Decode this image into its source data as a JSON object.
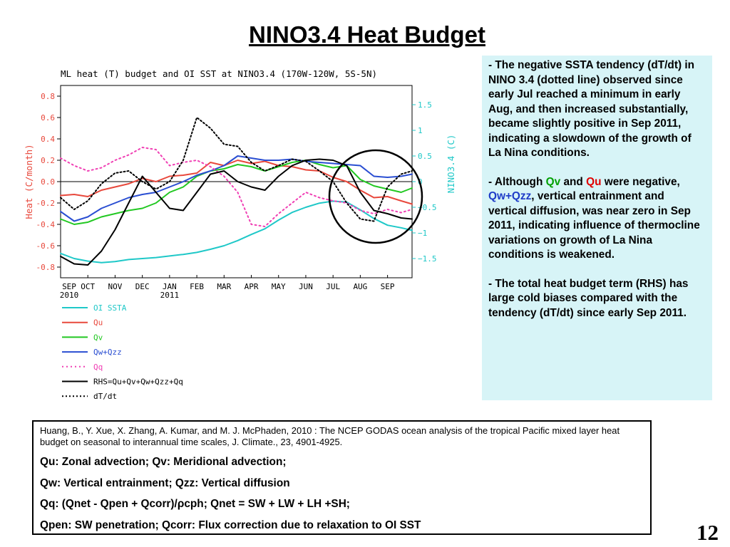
{
  "slide": {
    "title": "NINO3.4 Heat Budget",
    "page_number": "12"
  },
  "chart_data": {
    "type": "line",
    "title": "ML heat (T) budget and OI SST at NINO3.4 (170W-120W, 5S-5N)",
    "ylabel_left": "Heat (C/month)",
    "ylabel_right": "NINO3.4 (C)",
    "ylim_left": [
      -0.9,
      0.9
    ],
    "ylim_right": [
      -1.875,
      1.875
    ],
    "yticks_left": [
      "0.8",
      "0.6",
      "0.4",
      "0.2",
      "0.0",
      "-0.2",
      "-0.4",
      "-0.6",
      "-0.8"
    ],
    "yticks_right": [
      "1.5",
      "1",
      "0.5",
      "0",
      "-0.5",
      "-1",
      "-1.5"
    ],
    "xticks": [
      {
        "label": "SEP",
        "sub": "2010"
      },
      {
        "label": "OCT",
        "sub": ""
      },
      {
        "label": "NOV",
        "sub": ""
      },
      {
        "label": "DEC",
        "sub": ""
      },
      {
        "label": "JAN",
        "sub": "2011"
      },
      {
        "label": "FEB",
        "sub": ""
      },
      {
        "label": "MAR",
        "sub": ""
      },
      {
        "label": "APR",
        "sub": ""
      },
      {
        "label": "MAY",
        "sub": ""
      },
      {
        "label": "JUN",
        "sub": ""
      },
      {
        "label": "JUL",
        "sub": ""
      },
      {
        "label": "AUG",
        "sub": ""
      },
      {
        "label": "SEP",
        "sub": ""
      }
    ],
    "x_months_start": 0,
    "x_months_end": 12.9,
    "highlight_circle": true,
    "series": [
      {
        "name": "OI SSTA",
        "color": "#1fc8c8",
        "dash": "",
        "axis": "right",
        "points": [
          [
            0,
            -1.4
          ],
          [
            0.5,
            -1.5
          ],
          [
            1.0,
            -1.55
          ],
          [
            1.5,
            -1.58
          ],
          [
            2.0,
            -1.56
          ],
          [
            2.5,
            -1.52
          ],
          [
            3.0,
            -1.5
          ],
          [
            3.5,
            -1.48
          ],
          [
            4.0,
            -1.45
          ],
          [
            4.5,
            -1.42
          ],
          [
            5.0,
            -1.38
          ],
          [
            5.5,
            -1.32
          ],
          [
            6.0,
            -1.25
          ],
          [
            6.5,
            -1.15
          ],
          [
            7.0,
            -1.03
          ],
          [
            7.5,
            -0.92
          ],
          [
            8.0,
            -0.75
          ],
          [
            8.5,
            -0.6
          ],
          [
            9.0,
            -0.5
          ],
          [
            9.5,
            -0.42
          ],
          [
            10.0,
            -0.38
          ],
          [
            10.5,
            -0.4
          ],
          [
            11.0,
            -0.55
          ],
          [
            11.5,
            -0.72
          ],
          [
            12.0,
            -0.85
          ],
          [
            12.5,
            -0.9
          ],
          [
            12.9,
            -0.95
          ]
        ]
      },
      {
        "name": "Qu",
        "color": "#e8483c",
        "dash": "",
        "axis": "left",
        "points": [
          [
            0,
            -0.13
          ],
          [
            0.5,
            -0.12
          ],
          [
            1.0,
            -0.14
          ],
          [
            1.5,
            -0.08
          ],
          [
            2.0,
            -0.05
          ],
          [
            2.5,
            -0.02
          ],
          [
            3.0,
            0.03
          ],
          [
            3.5,
            0.0
          ],
          [
            4.0,
            0.05
          ],
          [
            4.5,
            0.06
          ],
          [
            5.0,
            0.08
          ],
          [
            5.5,
            0.18
          ],
          [
            6.0,
            0.15
          ],
          [
            6.5,
            0.2
          ],
          [
            7.0,
            0.17
          ],
          [
            7.5,
            0.19
          ],
          [
            8.0,
            0.15
          ],
          [
            8.5,
            0.14
          ],
          [
            9.0,
            0.11
          ],
          [
            9.5,
            0.1
          ],
          [
            10.0,
            0.04
          ],
          [
            10.5,
            0.0
          ],
          [
            11.0,
            -0.08
          ],
          [
            11.5,
            -0.15
          ],
          [
            12.0,
            -0.14
          ],
          [
            12.5,
            -0.18
          ],
          [
            12.9,
            -0.21
          ]
        ]
      },
      {
        "name": "Qv",
        "color": "#22c822",
        "dash": "",
        "axis": "left",
        "points": [
          [
            0,
            -0.35
          ],
          [
            0.5,
            -0.4
          ],
          [
            1.0,
            -0.38
          ],
          [
            1.5,
            -0.33
          ],
          [
            2.0,
            -0.3
          ],
          [
            2.5,
            -0.27
          ],
          [
            3.0,
            -0.25
          ],
          [
            3.5,
            -0.2
          ],
          [
            4.0,
            -0.1
          ],
          [
            4.5,
            -0.05
          ],
          [
            5.0,
            0.05
          ],
          [
            5.5,
            0.1
          ],
          [
            6.0,
            0.12
          ],
          [
            6.5,
            0.16
          ],
          [
            7.0,
            0.14
          ],
          [
            7.5,
            0.1
          ],
          [
            8.0,
            0.14
          ],
          [
            8.5,
            0.18
          ],
          [
            9.0,
            0.2
          ],
          [
            9.5,
            0.16
          ],
          [
            10.0,
            0.13
          ],
          [
            10.5,
            0.15
          ],
          [
            11.0,
            0.02
          ],
          [
            11.5,
            -0.04
          ],
          [
            12.0,
            -0.07
          ],
          [
            12.5,
            -0.1
          ],
          [
            12.9,
            -0.06
          ]
        ]
      },
      {
        "name": "Qw+Qzz",
        "color": "#2a4ed2",
        "dash": "",
        "axis": "left",
        "points": [
          [
            0,
            -0.28
          ],
          [
            0.5,
            -0.37
          ],
          [
            1.0,
            -0.33
          ],
          [
            1.5,
            -0.25
          ],
          [
            2.0,
            -0.2
          ],
          [
            2.5,
            -0.15
          ],
          [
            3.0,
            -0.12
          ],
          [
            3.5,
            -0.1
          ],
          [
            4.0,
            -0.05
          ],
          [
            4.5,
            0.0
          ],
          [
            5.0,
            0.06
          ],
          [
            5.5,
            0.1
          ],
          [
            6.0,
            0.15
          ],
          [
            6.5,
            0.24
          ],
          [
            7.0,
            0.22
          ],
          [
            7.5,
            0.2
          ],
          [
            8.0,
            0.2
          ],
          [
            8.5,
            0.21
          ],
          [
            9.0,
            0.19
          ],
          [
            9.5,
            0.18
          ],
          [
            10.0,
            0.17
          ],
          [
            10.5,
            0.16
          ],
          [
            11.0,
            0.15
          ],
          [
            11.5,
            0.05
          ],
          [
            12.0,
            0.04
          ],
          [
            12.5,
            0.05
          ],
          [
            12.9,
            0.07
          ]
        ]
      },
      {
        "name": "Qq",
        "color": "#f040b4",
        "dash": "2,4",
        "axis": "left",
        "points": [
          [
            0,
            0.22
          ],
          [
            0.5,
            0.15
          ],
          [
            1.0,
            0.1
          ],
          [
            1.5,
            0.13
          ],
          [
            2.0,
            0.2
          ],
          [
            2.5,
            0.25
          ],
          [
            3.0,
            0.32
          ],
          [
            3.5,
            0.3
          ],
          [
            4.0,
            0.15
          ],
          [
            4.5,
            0.18
          ],
          [
            5.0,
            0.2
          ],
          [
            5.5,
            0.14
          ],
          [
            6.0,
            0.05
          ],
          [
            6.5,
            -0.1
          ],
          [
            7.0,
            -0.4
          ],
          [
            7.5,
            -0.42
          ],
          [
            8.0,
            -0.3
          ],
          [
            8.5,
            -0.2
          ],
          [
            9.0,
            -0.1
          ],
          [
            9.5,
            -0.15
          ],
          [
            10.0,
            -0.18
          ],
          [
            10.5,
            -0.2
          ],
          [
            11.0,
            -0.27
          ],
          [
            11.5,
            -0.3
          ],
          [
            12.0,
            -0.26
          ],
          [
            12.5,
            -0.29
          ],
          [
            12.9,
            -0.26
          ]
        ]
      },
      {
        "name": "RHS=Qu+Qv+Qw+Qzz+Qq",
        "color": "#000000",
        "dash": "",
        "axis": "left",
        "points": [
          [
            0,
            -0.7
          ],
          [
            0.5,
            -0.77
          ],
          [
            1.0,
            -0.78
          ],
          [
            1.5,
            -0.65
          ],
          [
            2.0,
            -0.45
          ],
          [
            2.5,
            -0.2
          ],
          [
            3.0,
            0.05
          ],
          [
            3.5,
            -0.1
          ],
          [
            4.0,
            -0.25
          ],
          [
            4.5,
            -0.27
          ],
          [
            5.0,
            -0.1
          ],
          [
            5.5,
            0.07
          ],
          [
            6.0,
            0.1
          ],
          [
            6.5,
            0.0
          ],
          [
            7.0,
            -0.05
          ],
          [
            7.5,
            -0.08
          ],
          [
            8.0,
            0.05
          ],
          [
            8.5,
            0.15
          ],
          [
            9.0,
            0.2
          ],
          [
            9.5,
            0.21
          ],
          [
            10.0,
            0.2
          ],
          [
            10.5,
            0.15
          ],
          [
            11.0,
            -0.1
          ],
          [
            11.5,
            -0.27
          ],
          [
            12.0,
            -0.3
          ],
          [
            12.5,
            -0.34
          ],
          [
            12.9,
            -0.35
          ]
        ]
      },
      {
        "name": "dT/dt",
        "color": "#000000",
        "dash": "2,3",
        "axis": "left",
        "points": [
          [
            0,
            -0.15
          ],
          [
            0.5,
            -0.26
          ],
          [
            1.0,
            -0.18
          ],
          [
            1.5,
            -0.02
          ],
          [
            2.0,
            0.08
          ],
          [
            2.5,
            0.1
          ],
          [
            3.0,
            0.0
          ],
          [
            3.5,
            -0.07
          ],
          [
            4.0,
            0.0
          ],
          [
            4.5,
            0.2
          ],
          [
            5.0,
            0.6
          ],
          [
            5.5,
            0.5
          ],
          [
            6.0,
            0.35
          ],
          [
            6.5,
            0.33
          ],
          [
            7.0,
            0.18
          ],
          [
            7.5,
            0.1
          ],
          [
            8.0,
            0.15
          ],
          [
            8.5,
            0.21
          ],
          [
            9.0,
            0.19
          ],
          [
            9.5,
            0.1
          ],
          [
            10.0,
            0.0
          ],
          [
            10.5,
            -0.2
          ],
          [
            11.0,
            -0.35
          ],
          [
            11.5,
            -0.37
          ],
          [
            12.0,
            -0.05
          ],
          [
            12.5,
            0.07
          ],
          [
            12.9,
            0.1
          ]
        ]
      }
    ]
  },
  "legend": {
    "items": [
      {
        "label": "OI SSTA",
        "color": "#1fc8c8",
        "dash": "",
        "label_color": "#1fc8c8"
      },
      {
        "label": "Qu",
        "color": "#e8483c",
        "dash": "",
        "label_color": "#e8483c"
      },
      {
        "label": "Qv",
        "color": "#22c822",
        "dash": "",
        "label_color": "#22c822"
      },
      {
        "label": "Qw+Qzz",
        "color": "#2a4ed2",
        "dash": "",
        "label_color": "#2a4ed2"
      },
      {
        "label": "Qq",
        "color": "#f040b4",
        "dash": "2,4",
        "label_color": "#f040b4"
      },
      {
        "label": "RHS=Qu+Qv+Qw+Qzz+Qq",
        "color": "#000000",
        "dash": "",
        "label_color": "#000000"
      },
      {
        "label": "dT/dt",
        "color": "#000000",
        "dash": "2,3",
        "label_color": "#000000"
      }
    ]
  },
  "sidebox": {
    "p1": "- The negative SSTA tendency (dT/dt) in NINO 3.4 (dotted line) observed since early Jul reached a minimum in early Aug, and then increased substantially, became slightly positive in Sep 2011, indicating a slowdown of the growth of La Nina conditions.",
    "p2_a": "- Although ",
    "p2_qv": "Qv",
    "p2_and": " and ",
    "p2_qu": "Qu",
    "p2_b": " were negative, ",
    "p2_qwqzz": "Qw+Qzz",
    "p2_c": ", vertical entrainment and vertical diffusion, was near zero in Sep 2011, indicating influence of thermocline variations on growth of La Nina conditions is weakened.",
    "p3": "- The total heat budget term (RHS) has large cold biases compared with the tendency (dT/dt) since early Sep 2011."
  },
  "refbox": {
    "citation": "Huang, B., Y. Xue, X. Zhang, A. Kumar, and M. J. McPhaden, 2010 : The NCEP GODAS ocean analysis of the tropical Pacific mixed layer heat budget on seasonal to interannual time scales,  J. Climate., 23, 4901-4925.",
    "line1": "Qu: Zonal advection;    Qv: Meridional advection;",
    "line2": "Qw: Vertical entrainment;  Qzz: Vertical diffusion",
    "line3": "Qq: (Qnet - Qpen + Qcorr)/ρcph;  Qnet = SW + LW + LH +SH;",
    "line4": "Qpen: SW penetration; Qcorr: Flux correction due to relaxation to OI SST"
  }
}
